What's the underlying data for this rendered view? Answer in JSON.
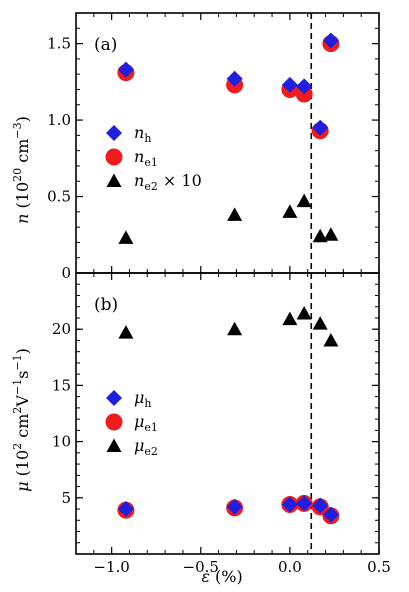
{
  "colors": {
    "n_h": "#1f1fe0",
    "n_e1": "#ee1c1c",
    "n_e2": "#000000",
    "vline": "#000000"
  },
  "chart_data": [
    {
      "type": "scatter",
      "panel_label": "(a)",
      "ylabel": "n (10²⁰ cm⁻³)",
      "xlim": [
        -1.2,
        0.5
      ],
      "ylim": [
        0,
        1.7
      ],
      "yticks": [
        0,
        0.5,
        1.0,
        1.5
      ],
      "ytick_labels": [
        "0",
        "0.5",
        "1.0",
        "1.5"
      ],
      "vline_x": 0.12,
      "legend_position": "left-middle",
      "series": [
        {
          "name": "n_h",
          "marker": "diamond",
          "x": [
            -0.92,
            -0.31,
            0.0,
            0.08,
            0.17,
            0.23
          ],
          "y": [
            1.33,
            1.27,
            1.23,
            1.22,
            0.95,
            1.52
          ]
        },
        {
          "name": "n_e1",
          "marker": "circle",
          "x": [
            -0.92,
            -0.31,
            0.0,
            0.08,
            0.17,
            0.23
          ],
          "y": [
            1.31,
            1.23,
            1.2,
            1.17,
            0.93,
            1.5
          ]
        },
        {
          "name": "n_e2 × 10",
          "marker": "triangle",
          "x": [
            -0.92,
            -0.31,
            0.0,
            0.08,
            0.17,
            0.23
          ],
          "y": [
            0.23,
            0.38,
            0.4,
            0.47,
            0.24,
            0.25
          ]
        }
      ]
    },
    {
      "type": "scatter",
      "panel_label": "(b)",
      "xlabel": "ε (%)",
      "ylabel": "μ (10² cm²V⁻¹s⁻¹)",
      "xlim": [
        -1.2,
        0.5
      ],
      "ylim": [
        0,
        25
      ],
      "xticks": [
        -1.0,
        -0.5,
        0.0,
        0.5
      ],
      "xtick_labels": [
        "−1.0",
        "−0.5",
        "0.0",
        "0.5"
      ],
      "yticks": [
        5,
        10,
        15,
        20
      ],
      "ytick_labels": [
        "5",
        "10",
        "15",
        "20"
      ],
      "vline_x": 0.12,
      "legend_position": "left-middle",
      "series": [
        {
          "name": "μ_h",
          "marker": "diamond",
          "x": [
            -0.92,
            -0.31,
            0.0,
            0.08,
            0.17,
            0.23
          ],
          "y": [
            4.0,
            4.2,
            4.4,
            4.5,
            4.3,
            3.5
          ]
        },
        {
          "name": "μ_e1",
          "marker": "circle",
          "x": [
            -0.92,
            -0.31,
            0.0,
            0.08,
            0.17,
            0.23
          ],
          "y": [
            3.9,
            4.1,
            4.4,
            4.5,
            4.2,
            3.4
          ]
        },
        {
          "name": "μ_e2",
          "marker": "triangle",
          "x": [
            -0.92,
            -0.31,
            0.0,
            0.08,
            0.17,
            0.23
          ],
          "y": [
            19.7,
            20.0,
            20.9,
            21.4,
            20.5,
            19.0
          ]
        }
      ]
    }
  ]
}
